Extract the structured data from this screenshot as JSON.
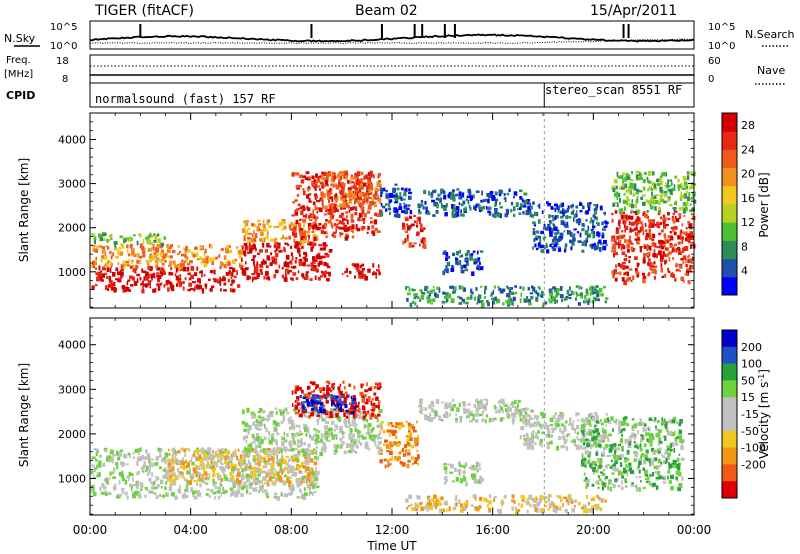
{
  "header": {
    "title": "TIGER (fitACF)",
    "beam": "Beam 02",
    "date": "15/Apr/2011"
  },
  "noise_panel": {
    "left_label": "N.Sky",
    "right_label": "N.Search",
    "left_ticks": [
      "10^5",
      "10^0"
    ],
    "right_ticks": [
      "10^5",
      "10^0"
    ]
  },
  "freq_panel": {
    "left_label_1": "Freq.",
    "left_label_2": "[MHz]",
    "right_label": "Nave",
    "left_ticks": [
      "18",
      "8"
    ],
    "right_ticks": [
      "60",
      "0"
    ]
  },
  "cpid_panel": {
    "label": "CPID",
    "programs": [
      "normalsound (fast) 157 RF",
      "stereo_scan 8551 RF"
    ],
    "switch_time_h": 18.05
  },
  "x_axis": {
    "label": "Time UT",
    "ticks": [
      "00:00",
      "04:00",
      "08:00",
      "12:00",
      "16:00",
      "20:00",
      "00:00"
    ]
  },
  "colors": {
    "power_scale": [
      "#0000ff",
      "#1e50a8",
      "#2e8c5a",
      "#4cbf34",
      "#b4d21e",
      "#f0c81e",
      "#f0901e",
      "#f05a1e",
      "#e62814",
      "#d20000"
    ],
    "velocity_scale": [
      "#0000c8",
      "#1e50c8",
      "#28a03c",
      "#6ed23c",
      "#c0c0c0",
      "#c0c0c0",
      "#f0c81e",
      "#f09614",
      "#f05a14",
      "#dc0000"
    ]
  },
  "chart_data": [
    {
      "type": "heatmap",
      "title": "Power",
      "xlabel": "Time UT",
      "ylabel": "Slant Range [km]",
      "xlim": [
        0,
        24
      ],
      "ylim": [
        180,
        4600
      ],
      "y_ticks": [
        "1000",
        "2000",
        "3000",
        "4000"
      ],
      "colorbar_label": "Power [dB]",
      "colorbar_ticks": [
        "4",
        "8",
        "12",
        "16",
        "20",
        "24",
        "28"
      ],
      "scatter_regions": [
        {
          "t0": 0.0,
          "t1": 6.0,
          "r0": 600,
          "r1": 1150,
          "level": 9
        },
        {
          "t0": 0.0,
          "t1": 6.0,
          "r0": 1150,
          "r1": 1650,
          "level": 6
        },
        {
          "t0": 0.0,
          "t1": 3.0,
          "r0": 1650,
          "r1": 1900,
          "level": 3
        },
        {
          "t0": 6.0,
          "t1": 9.5,
          "r0": 850,
          "r1": 1700,
          "level": 9
        },
        {
          "t0": 6.0,
          "t1": 9.0,
          "r0": 1700,
          "r1": 2200,
          "level": 6
        },
        {
          "t0": 8.0,
          "t1": 11.5,
          "r0": 1800,
          "r1": 3300,
          "level": 8
        },
        {
          "t0": 9.0,
          "t1": 11.5,
          "r0": 2500,
          "r1": 3300,
          "level": 7
        },
        {
          "t0": 11.5,
          "t1": 12.7,
          "r0": 2300,
          "r1": 3000,
          "level": 1
        },
        {
          "t0": 10.0,
          "t1": 11.5,
          "r0": 900,
          "r1": 1200,
          "level": 9
        },
        {
          "t0": 12.3,
          "t1": 13.3,
          "r0": 1600,
          "r1": 2300,
          "level": 8
        },
        {
          "t0": 13.0,
          "t1": 17.5,
          "r0": 2300,
          "r1": 2900,
          "level": 1
        },
        {
          "t0": 14.0,
          "t1": 15.5,
          "r0": 1000,
          "r1": 1500,
          "level": 1
        },
        {
          "t0": 12.5,
          "t1": 20.5,
          "r0": 300,
          "r1": 700,
          "level": 2
        },
        {
          "t0": 17.5,
          "t1": 20.5,
          "r0": 1500,
          "r1": 2600,
          "level": 1
        },
        {
          "t0": 20.7,
          "t1": 24.0,
          "r0": 800,
          "r1": 2400,
          "level": 8
        },
        {
          "t0": 20.7,
          "t1": 24.0,
          "r0": 2400,
          "r1": 3300,
          "level": 3
        }
      ]
    },
    {
      "type": "heatmap",
      "title": "Velocity",
      "xlabel": "Time UT",
      "ylabel": "Slant Range [km]",
      "xlim": [
        0,
        24
      ],
      "ylim": [
        180,
        4600
      ],
      "y_ticks": [
        "1000",
        "2000",
        "3000",
        "4000"
      ],
      "colorbar_label": "Velocity [m s^-1]",
      "colorbar_ticks": [
        "200",
        "100",
        "50",
        "15",
        "-15",
        "-50",
        "-100",
        "-200"
      ],
      "scatter_regions": [
        {
          "t0": 0.0,
          "t1": 9.0,
          "r0": 600,
          "r1": 1700,
          "level": 4
        },
        {
          "t0": 3.0,
          "t1": 9.0,
          "r0": 900,
          "r1": 1700,
          "level": 6
        },
        {
          "t0": 6.0,
          "t1": 11.5,
          "r0": 1600,
          "r1": 2600,
          "level": 4
        },
        {
          "t0": 8.0,
          "t1": 11.5,
          "r0": 2400,
          "r1": 3200,
          "level": 9
        },
        {
          "t0": 8.3,
          "t1": 10.5,
          "r0": 2500,
          "r1": 2900,
          "level": 0
        },
        {
          "t0": 11.5,
          "t1": 13.0,
          "r0": 1300,
          "r1": 2300,
          "level": 7
        },
        {
          "t0": 13.0,
          "t1": 17.5,
          "r0": 2300,
          "r1": 2800,
          "level": 4
        },
        {
          "t0": 14.0,
          "t1": 15.5,
          "r0": 900,
          "r1": 1400,
          "level": 4
        },
        {
          "t0": 12.5,
          "t1": 20.5,
          "r0": 300,
          "r1": 650,
          "level": 6
        },
        {
          "t0": 17.0,
          "t1": 20.5,
          "r0": 1700,
          "r1": 2500,
          "level": 4
        },
        {
          "t0": 19.5,
          "t1": 23.5,
          "r0": 800,
          "r1": 2400,
          "level": 3
        }
      ]
    }
  ]
}
